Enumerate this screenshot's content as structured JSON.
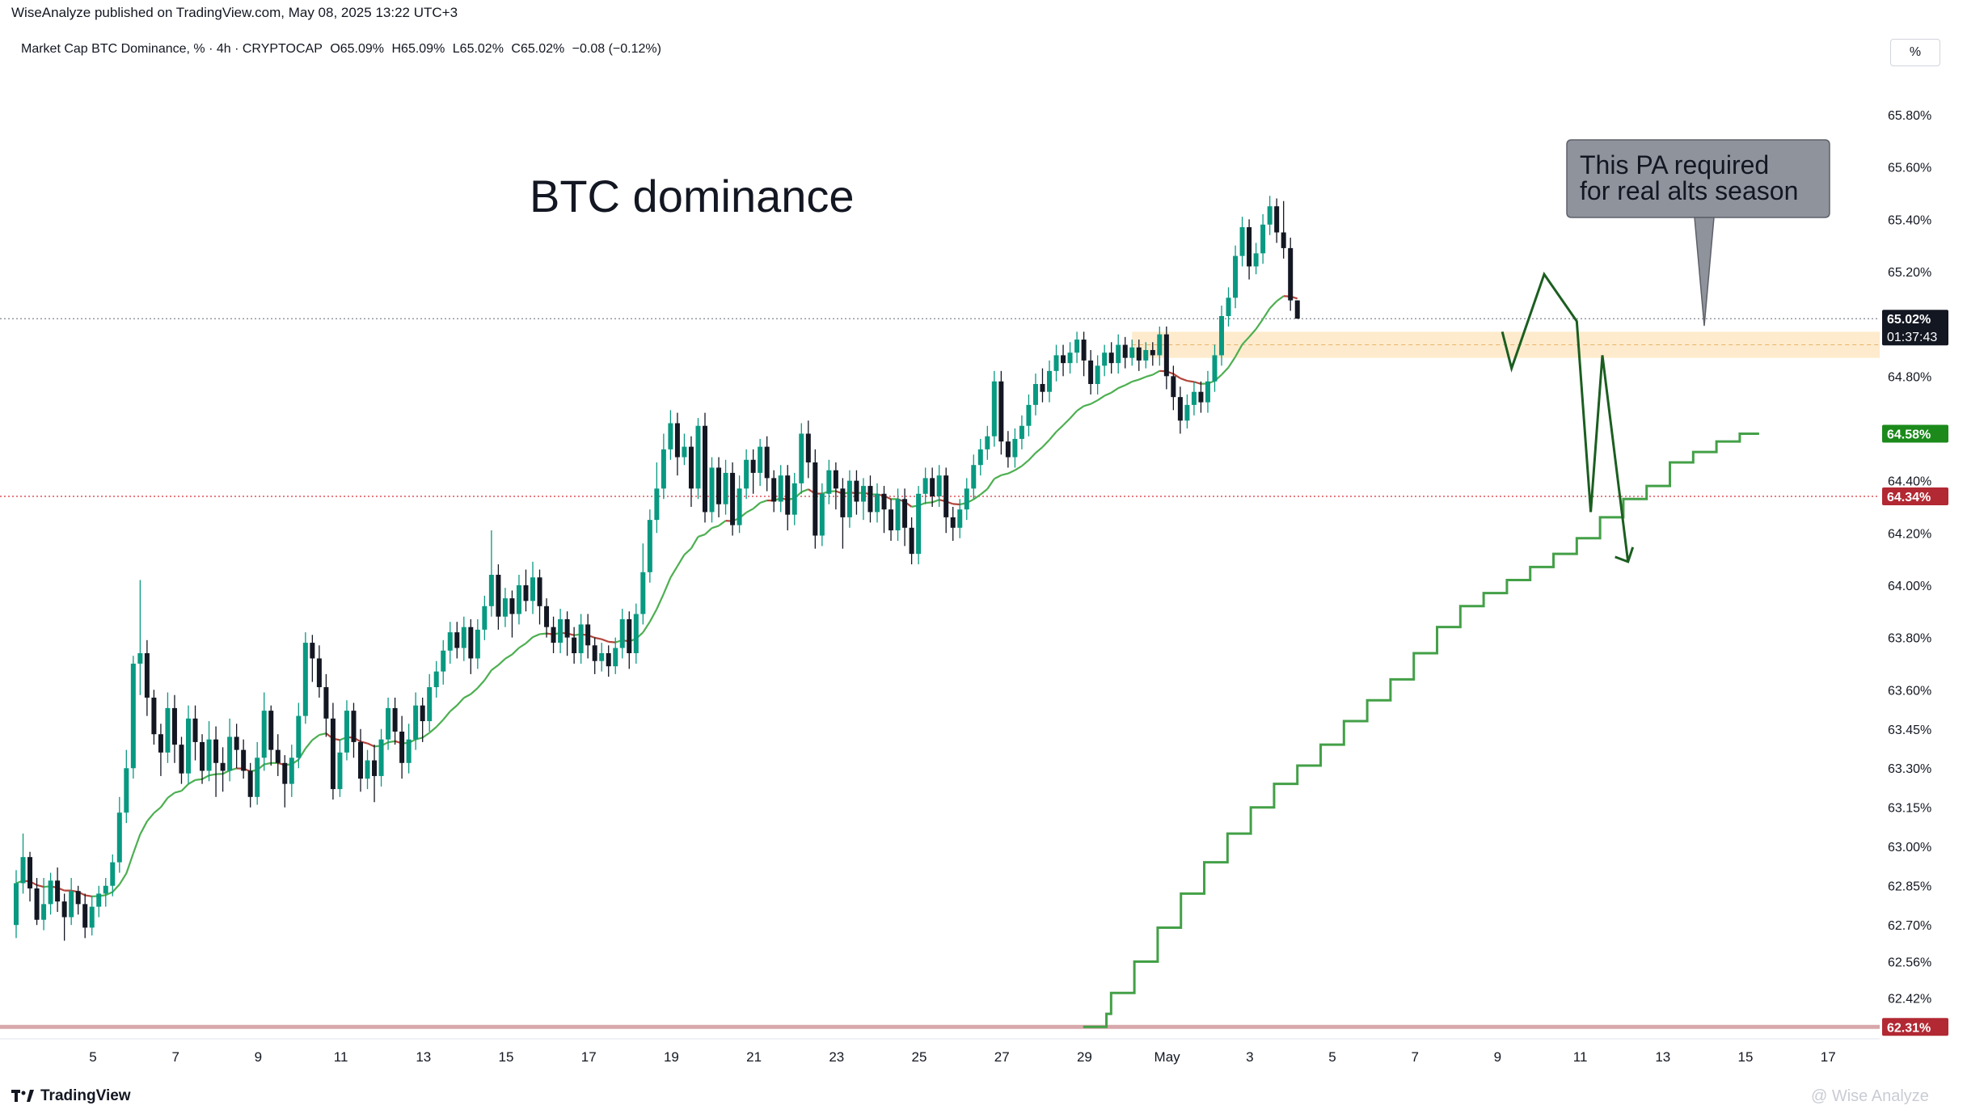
{
  "header": {
    "published": "WiseAnalyze published on TradingView.com, May 08, 2025 13:22 UTC+3",
    "symbol": "Market Cap BTC Dominance, % · 4h · CRYPTOCAP",
    "open": "O65.09%",
    "high": "H65.09%",
    "low": "L65.02%",
    "close": "C65.02%",
    "change": "−0.08 (−0.12%)",
    "scale_button": "%"
  },
  "footer": {
    "brand": "TradingView",
    "watermark": "@ Wise Analyze"
  },
  "colors": {
    "bull": "#089981",
    "bear": "#131722",
    "ma_up": "#4caf50",
    "ma_down": "#b2443a",
    "step": "#43a047",
    "projection": "#1b5e20",
    "zone": "#fde2b8",
    "callout": "#8f939c"
  },
  "chart_data": {
    "type": "candlestick",
    "title": "BTC dominance",
    "ylim": [
      62.28,
      65.93
    ],
    "y_ticks": [
      "65.80%",
      "65.60%",
      "65.40%",
      "65.20%",
      "64.80%",
      "64.40%",
      "64.20%",
      "64.00%",
      "63.80%",
      "63.60%",
      "63.45%",
      "63.30%",
      "63.15%",
      "63.00%",
      "62.85%",
      "62.70%",
      "62.56%",
      "62.42%"
    ],
    "x_ticks": [
      "5",
      "7",
      "9",
      "11",
      "13",
      "15",
      "17",
      "19",
      "21",
      "23",
      "25",
      "27",
      "29",
      "May",
      "3",
      "5",
      "7",
      "9",
      "11",
      "13",
      "15",
      "17"
    ],
    "price_labels": [
      {
        "value": 65.02,
        "text": "65.02%",
        "countdown": "01:37:43",
        "color": "#131722"
      },
      {
        "value": 64.58,
        "text": "64.58%",
        "color": "#1b8a1b"
      },
      {
        "value": 64.34,
        "text": "64.34%",
        "color": "#b22833"
      },
      {
        "value": 62.31,
        "text": "62.31%",
        "color": "#b22833"
      }
    ],
    "horizontal_lines": [
      {
        "value": 65.02,
        "style": "dotted",
        "color": "#9598a1"
      },
      {
        "value": 64.34,
        "style": "dotted",
        "color": "#e0505a"
      },
      {
        "value": 62.31,
        "style": "solid",
        "color": "#d7a8ab"
      }
    ],
    "zone": {
      "from": 64.87,
      "to": 64.97,
      "x_start": 5.0,
      "x_end": 19.0
    },
    "annotation": "This PA required\nfor real alts season",
    "projection_path": [
      [
        8.8,
        64.97
      ],
      [
        9.2,
        64.83
      ],
      [
        10.6,
        65.19
      ],
      [
        12.0,
        65.01
      ],
      [
        12.6,
        64.28
      ],
      [
        13.1,
        64.88
      ],
      [
        14.2,
        64.09
      ]
    ],
    "step_line": [
      [
        -9.2,
        62.31
      ],
      [
        -8.2,
        62.36
      ],
      [
        -8.0,
        62.44
      ],
      [
        -7.0,
        62.56
      ],
      [
        -6.0,
        62.69
      ],
      [
        -5.0,
        62.82
      ],
      [
        -4.0,
        62.94
      ],
      [
        -3.0,
        63.05
      ],
      [
        -2.0,
        63.15
      ],
      [
        -1.0,
        63.24
      ],
      [
        0.0,
        63.31
      ],
      [
        1.0,
        63.39
      ],
      [
        2.0,
        63.48
      ],
      [
        3.0,
        63.56
      ],
      [
        4.0,
        63.64
      ],
      [
        5.0,
        63.74
      ],
      [
        6.0,
        63.84
      ],
      [
        7.0,
        63.92
      ],
      [
        8.0,
        63.97
      ],
      [
        9.0,
        64.02
      ],
      [
        10.0,
        64.07
      ],
      [
        11.0,
        64.12
      ],
      [
        12.0,
        64.18
      ],
      [
        13.0,
        64.26
      ],
      [
        14.0,
        64.33
      ],
      [
        15.0,
        64.38
      ],
      [
        16.0,
        64.47
      ],
      [
        17.0,
        64.51
      ],
      [
        18.0,
        64.55
      ],
      [
        19.0,
        64.58
      ]
    ],
    "candles": [
      [
        62.7,
        62.86,
        62.65,
        62.91
      ],
      [
        62.86,
        62.96,
        62.82,
        63.05
      ],
      [
        62.96,
        62.84,
        62.79,
        62.98
      ],
      [
        62.84,
        62.72,
        62.7,
        62.88
      ],
      [
        62.72,
        62.78,
        62.68,
        62.88
      ],
      [
        62.78,
        62.87,
        62.74,
        62.9
      ],
      [
        62.87,
        62.79,
        62.75,
        62.92
      ],
      [
        62.79,
        62.73,
        62.64,
        62.82
      ],
      [
        62.73,
        62.83,
        62.7,
        62.88
      ],
      [
        62.83,
        62.78,
        62.74,
        62.85
      ],
      [
        62.78,
        62.69,
        62.65,
        62.82
      ],
      [
        62.69,
        62.77,
        62.66,
        62.81
      ],
      [
        62.77,
        62.82,
        62.73,
        62.85
      ],
      [
        62.82,
        62.85,
        62.77,
        62.88
      ],
      [
        62.85,
        62.94,
        62.81,
        62.97
      ],
      [
        62.94,
        63.13,
        62.9,
        63.19
      ],
      [
        63.13,
        63.3,
        63.09,
        63.37
      ],
      [
        63.3,
        63.7,
        63.26,
        63.73
      ],
      [
        63.7,
        63.74,
        63.58,
        64.02
      ],
      [
        63.74,
        63.57,
        63.5,
        63.79
      ],
      [
        63.57,
        63.43,
        63.39,
        63.6
      ],
      [
        63.43,
        63.36,
        63.27,
        63.47
      ],
      [
        63.36,
        63.53,
        63.32,
        63.59
      ],
      [
        63.53,
        63.39,
        63.32,
        63.58
      ],
      [
        63.39,
        63.28,
        63.24,
        63.42
      ],
      [
        63.28,
        63.49,
        63.24,
        63.54
      ],
      [
        63.49,
        63.4,
        63.33,
        63.54
      ],
      [
        63.4,
        63.29,
        63.24,
        63.43
      ],
      [
        63.29,
        63.41,
        63.25,
        63.48
      ],
      [
        63.41,
        63.32,
        63.19,
        63.46
      ],
      [
        63.32,
        63.29,
        63.21,
        63.38
      ],
      [
        63.29,
        63.42,
        63.25,
        63.49
      ],
      [
        63.42,
        63.37,
        63.3,
        63.47
      ],
      [
        63.37,
        63.29,
        63.26,
        63.41
      ],
      [
        63.29,
        63.19,
        63.15,
        63.32
      ],
      [
        63.19,
        63.34,
        63.16,
        63.4
      ],
      [
        63.34,
        63.52,
        63.29,
        63.59
      ],
      [
        63.52,
        63.37,
        63.31,
        63.54
      ],
      [
        63.37,
        63.32,
        63.27,
        63.43
      ],
      [
        63.32,
        63.24,
        63.15,
        63.35
      ],
      [
        63.24,
        63.34,
        63.19,
        63.39
      ],
      [
        63.34,
        63.5,
        63.3,
        63.55
      ],
      [
        63.5,
        63.78,
        63.47,
        63.82
      ],
      [
        63.78,
        63.72,
        63.63,
        63.81
      ],
      [
        63.72,
        63.61,
        63.57,
        63.77
      ],
      [
        63.61,
        63.49,
        63.42,
        63.66
      ],
      [
        63.49,
        63.22,
        63.18,
        63.55
      ],
      [
        63.22,
        63.36,
        63.19,
        63.41
      ],
      [
        63.36,
        63.52,
        63.33,
        63.56
      ],
      [
        63.52,
        63.4,
        63.34,
        63.55
      ],
      [
        63.4,
        63.26,
        63.21,
        63.45
      ],
      [
        63.26,
        63.33,
        63.22,
        63.37
      ],
      [
        63.33,
        63.27,
        63.17,
        63.39
      ],
      [
        63.27,
        63.41,
        63.23,
        63.45
      ],
      [
        63.41,
        63.53,
        63.37,
        63.57
      ],
      [
        63.53,
        63.44,
        63.39,
        63.57
      ],
      [
        63.44,
        63.32,
        63.26,
        63.5
      ],
      [
        63.32,
        63.41,
        63.28,
        63.47
      ],
      [
        63.41,
        63.54,
        63.37,
        63.59
      ],
      [
        63.54,
        63.48,
        63.4,
        63.57
      ],
      [
        63.48,
        63.61,
        63.44,
        63.66
      ],
      [
        63.61,
        63.67,
        63.57,
        63.71
      ],
      [
        63.67,
        63.75,
        63.62,
        63.79
      ],
      [
        63.75,
        63.82,
        63.7,
        63.86
      ],
      [
        63.82,
        63.76,
        63.72,
        63.86
      ],
      [
        63.76,
        63.84,
        63.71,
        63.88
      ],
      [
        63.84,
        63.72,
        63.66,
        63.87
      ],
      [
        63.72,
        63.83,
        63.68,
        63.87
      ],
      [
        63.83,
        63.92,
        63.79,
        63.96
      ],
      [
        63.92,
        64.04,
        63.88,
        64.21
      ],
      [
        64.04,
        63.88,
        63.83,
        64.08
      ],
      [
        63.88,
        63.95,
        63.84,
        63.99
      ],
      [
        63.95,
        63.89,
        63.8,
        63.98
      ],
      [
        63.89,
        64.0,
        63.85,
        64.04
      ],
      [
        64.0,
        63.94,
        63.9,
        64.06
      ],
      [
        63.94,
        64.03,
        63.89,
        64.09
      ],
      [
        64.03,
        63.92,
        63.85,
        64.06
      ],
      [
        63.92,
        63.84,
        63.8,
        63.95
      ],
      [
        63.84,
        63.78,
        63.74,
        63.88
      ],
      [
        63.78,
        63.87,
        63.74,
        63.91
      ],
      [
        63.87,
        63.8,
        63.73,
        63.9
      ],
      [
        63.8,
        63.74,
        63.7,
        63.84
      ],
      [
        63.74,
        63.85,
        63.7,
        63.89
      ],
      [
        63.85,
        63.77,
        63.72,
        63.89
      ],
      [
        63.77,
        63.71,
        63.66,
        63.8
      ],
      [
        63.71,
        63.74,
        63.67,
        63.78
      ],
      [
        63.74,
        63.69,
        63.65,
        63.77
      ],
      [
        63.69,
        63.76,
        63.66,
        63.8
      ],
      [
        63.76,
        63.87,
        63.72,
        63.91
      ],
      [
        63.87,
        63.74,
        63.68,
        63.9
      ],
      [
        63.74,
        63.89,
        63.7,
        63.93
      ],
      [
        63.89,
        64.05,
        63.85,
        64.16
      ],
      [
        64.05,
        64.25,
        64.01,
        64.29
      ],
      [
        64.25,
        64.37,
        64.2,
        64.47
      ],
      [
        64.37,
        64.52,
        64.33,
        64.58
      ],
      [
        64.52,
        64.62,
        64.48,
        64.67
      ],
      [
        64.62,
        64.49,
        64.42,
        64.66
      ],
      [
        64.49,
        64.53,
        64.46,
        64.58
      ],
      [
        64.53,
        64.37,
        64.3,
        64.57
      ],
      [
        64.37,
        64.61,
        64.33,
        64.64
      ],
      [
        64.61,
        64.28,
        64.24,
        64.66
      ],
      [
        64.28,
        64.45,
        64.24,
        64.49
      ],
      [
        64.45,
        64.31,
        64.26,
        64.49
      ],
      [
        64.31,
        64.43,
        64.27,
        64.48
      ],
      [
        64.43,
        64.23,
        64.19,
        64.47
      ],
      [
        64.23,
        64.37,
        64.2,
        64.42
      ],
      [
        64.37,
        64.48,
        64.33,
        64.52
      ],
      [
        64.48,
        64.43,
        64.35,
        64.52
      ],
      [
        64.43,
        64.53,
        64.38,
        64.56
      ],
      [
        64.53,
        64.41,
        64.36,
        64.57
      ],
      [
        64.41,
        64.32,
        64.28,
        64.44
      ],
      [
        64.32,
        64.42,
        64.28,
        64.46
      ],
      [
        64.42,
        64.27,
        64.21,
        64.46
      ],
      [
        64.27,
        64.39,
        64.23,
        64.43
      ],
      [
        64.39,
        64.58,
        64.35,
        64.62
      ],
      [
        64.58,
        64.47,
        64.41,
        64.63
      ],
      [
        64.47,
        64.19,
        64.14,
        64.52
      ],
      [
        64.19,
        64.35,
        64.15,
        64.39
      ],
      [
        64.35,
        64.44,
        64.31,
        64.48
      ],
      [
        64.44,
        64.37,
        64.29,
        64.47
      ],
      [
        64.37,
        64.26,
        64.14,
        64.41
      ],
      [
        64.26,
        64.4,
        64.22,
        64.44
      ],
      [
        64.4,
        64.32,
        64.27,
        64.44
      ],
      [
        64.32,
        64.38,
        64.25,
        64.41
      ],
      [
        64.38,
        64.28,
        64.24,
        64.42
      ],
      [
        64.28,
        64.35,
        64.24,
        64.39
      ],
      [
        64.35,
        64.29,
        64.2,
        64.38
      ],
      [
        64.29,
        64.21,
        64.17,
        64.33
      ],
      [
        64.21,
        64.33,
        64.17,
        64.37
      ],
      [
        64.33,
        64.22,
        64.15,
        64.37
      ],
      [
        64.22,
        64.12,
        64.08,
        64.26
      ],
      [
        64.12,
        64.35,
        64.08,
        64.38
      ],
      [
        64.35,
        64.41,
        64.31,
        64.45
      ],
      [
        64.41,
        64.34,
        64.3,
        64.45
      ],
      [
        64.34,
        64.42,
        64.3,
        64.46
      ],
      [
        64.42,
        64.26,
        64.2,
        64.45
      ],
      [
        64.26,
        64.22,
        64.17,
        64.3
      ],
      [
        64.22,
        64.29,
        64.18,
        64.33
      ],
      [
        64.29,
        64.37,
        64.25,
        64.41
      ],
      [
        64.37,
        64.46,
        64.33,
        64.5
      ],
      [
        64.46,
        64.52,
        64.42,
        64.56
      ],
      [
        64.52,
        64.57,
        64.48,
        64.61
      ],
      [
        64.57,
        64.78,
        64.53,
        64.82
      ],
      [
        64.78,
        64.55,
        64.5,
        64.82
      ],
      [
        64.55,
        64.49,
        64.45,
        64.59
      ],
      [
        64.49,
        64.56,
        64.45,
        64.6
      ],
      [
        64.56,
        64.61,
        64.52,
        64.65
      ],
      [
        64.61,
        64.69,
        64.57,
        64.73
      ],
      [
        64.69,
        64.77,
        64.65,
        64.81
      ],
      [
        64.77,
        64.74,
        64.7,
        64.83
      ],
      [
        64.74,
        64.82,
        64.7,
        64.86
      ],
      [
        64.82,
        64.88,
        64.78,
        64.92
      ],
      [
        64.88,
        64.85,
        64.8,
        64.92
      ],
      [
        64.85,
        64.89,
        64.81,
        64.93
      ],
      [
        64.89,
        64.94,
        64.85,
        64.97
      ],
      [
        64.94,
        64.86,
        64.8,
        64.97
      ],
      [
        64.86,
        64.77,
        64.73,
        64.9
      ],
      [
        64.77,
        64.84,
        64.73,
        64.88
      ],
      [
        64.84,
        64.89,
        64.8,
        64.92
      ],
      [
        64.89,
        64.85,
        64.81,
        64.93
      ],
      [
        64.85,
        64.92,
        64.81,
        64.96
      ],
      [
        64.92,
        64.87,
        64.83,
        64.95
      ],
      [
        64.87,
        64.91,
        64.84,
        64.94
      ],
      [
        64.91,
        64.86,
        64.82,
        64.94
      ],
      [
        64.86,
        64.9,
        64.83,
        64.93
      ],
      [
        64.9,
        64.88,
        64.84,
        64.93
      ],
      [
        64.88,
        64.96,
        64.84,
        64.99
      ],
      [
        64.96,
        64.8,
        64.75,
        64.99
      ],
      [
        64.8,
        64.72,
        64.67,
        64.84
      ],
      [
        64.72,
        64.63,
        64.58,
        64.76
      ],
      [
        64.63,
        64.69,
        64.6,
        64.73
      ],
      [
        64.69,
        64.74,
        64.65,
        64.78
      ],
      [
        64.74,
        64.7,
        64.66,
        64.78
      ],
      [
        64.7,
        64.78,
        64.66,
        64.82
      ],
      [
        64.78,
        64.88,
        64.74,
        64.92
      ],
      [
        64.88,
        65.03,
        64.84,
        65.07
      ],
      [
        65.03,
        65.1,
        64.99,
        65.14
      ],
      [
        65.1,
        65.26,
        65.06,
        65.3
      ],
      [
        65.26,
        65.37,
        65.22,
        65.41
      ],
      [
        65.37,
        65.22,
        65.17,
        65.4
      ],
      [
        65.22,
        65.27,
        65.19,
        65.31
      ],
      [
        65.27,
        65.38,
        65.23,
        65.42
      ],
      [
        65.38,
        65.45,
        65.34,
        65.49
      ],
      [
        65.45,
        65.35,
        65.31,
        65.48
      ],
      [
        65.35,
        65.29,
        65.25,
        65.47
      ],
      [
        65.29,
        65.09,
        65.05,
        65.33
      ],
      [
        65.09,
        65.02,
        65.02,
        65.09
      ]
    ]
  }
}
